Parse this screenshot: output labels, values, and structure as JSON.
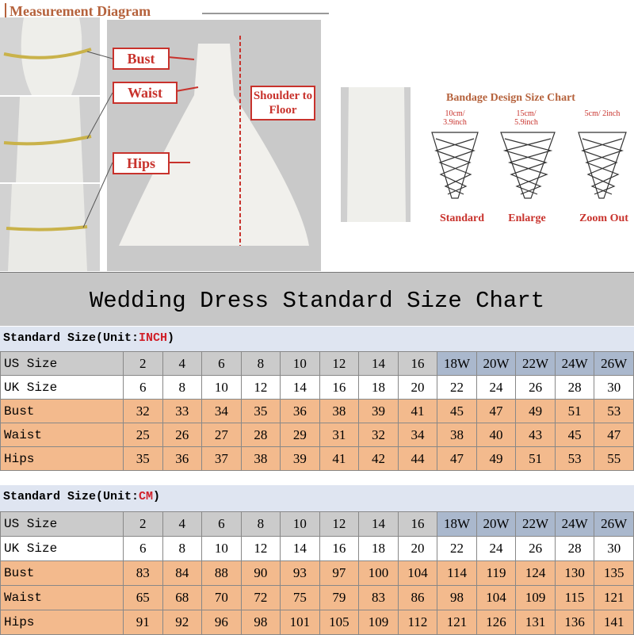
{
  "header": {
    "title": "Measurement Diagram"
  },
  "diagram": {
    "bust": "Bust",
    "waist": "Waist",
    "hips": "Hips",
    "shoulder": "Shoulder to Floor"
  },
  "bandage": {
    "title": "Bandage Design Size Chart",
    "items": [
      {
        "size": "10cm/ 3.9inch",
        "label": "Standard"
      },
      {
        "size": "15cm/ 5.9inch",
        "label": "Enlarge"
      },
      {
        "size": "5cm/ 2inch",
        "label": "Zoom Out"
      }
    ]
  },
  "table": {
    "title": "Wedding Dress Standard Size Chart",
    "sections": [
      {
        "heading": "Standard Size(Unit:",
        "unit": "INCH",
        "close": ")",
        "rows": [
          [
            "US Size",
            "2",
            "4",
            "6",
            "8",
            "10",
            "12",
            "14",
            "16",
            "18W",
            "20W",
            "22W",
            "24W",
            "26W"
          ],
          [
            "UK Size",
            6,
            8,
            10,
            12,
            14,
            16,
            18,
            20,
            22,
            24,
            26,
            28,
            30
          ],
          [
            "Bust",
            32,
            33,
            34,
            35,
            36,
            38,
            39,
            41,
            45,
            47,
            49,
            51,
            53
          ],
          [
            "Waist",
            25,
            26,
            27,
            28,
            29,
            31,
            32,
            34,
            38,
            40,
            43,
            45,
            47
          ],
          [
            "Hips",
            35,
            36,
            37,
            38,
            39,
            41,
            42,
            44,
            47,
            49,
            51,
            53,
            55
          ]
        ]
      },
      {
        "heading": "Standard Size(Unit:",
        "unit": "CM",
        "close": ")",
        "rows": [
          [
            "US Size",
            "2",
            "4",
            "6",
            "8",
            "10",
            "12",
            "14",
            "16",
            "18W",
            "20W",
            "22W",
            "24W",
            "26W"
          ],
          [
            "UK Size",
            6,
            8,
            10,
            12,
            14,
            16,
            18,
            20,
            22,
            24,
            26,
            28,
            30
          ],
          [
            "Bust",
            83,
            84,
            88,
            90,
            93,
            97,
            100,
            104,
            114,
            119,
            124,
            130,
            135
          ],
          [
            "Waist",
            65,
            68,
            70,
            72,
            75,
            79,
            83,
            86,
            98,
            104,
            109,
            115,
            121
          ],
          [
            "Hips",
            91,
            92,
            96,
            98,
            101,
            105,
            109,
            112,
            121,
            126,
            131,
            136,
            141
          ]
        ]
      }
    ]
  }
}
